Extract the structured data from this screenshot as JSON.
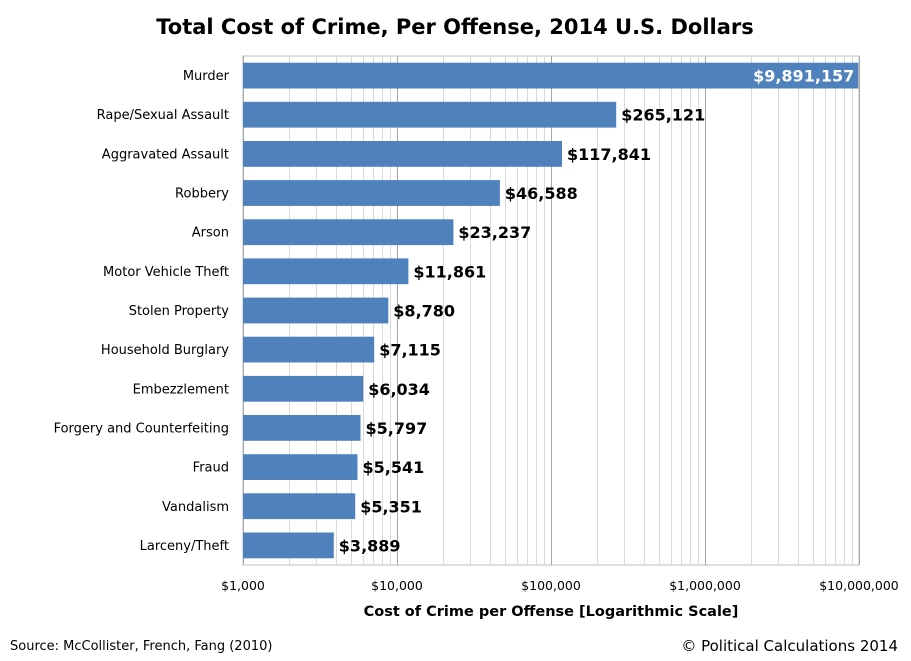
{
  "chart_data": {
    "type": "bar",
    "orientation": "horizontal",
    "title": "Total Cost of Crime, Per Offense, 2014 U.S. Dollars",
    "xlabel": "Cost of Crime per Offense [Logarithmic Scale]",
    "ylabel": "",
    "x_scale": "log",
    "xlim": [
      1000,
      10000000
    ],
    "x_ticks": [
      1000,
      10000,
      100000,
      1000000,
      10000000
    ],
    "x_tick_labels": [
      "$1,000",
      "$10,000",
      "$100,000",
      "$1,000,000",
      "$10,000,000"
    ],
    "grid": "vertical minor and major log gridlines",
    "legend": "none",
    "bar_color": "#4f81bd",
    "categories": [
      "Murder",
      "Rape/Sexual Assault",
      "Aggravated Assault",
      "Robbery",
      "Arson",
      "Motor Vehicle Theft",
      "Stolen Property",
      "Household Burglary",
      "Embezzlement",
      "Forgery and Counterfeiting",
      "Fraud",
      "Vandalism",
      "Larceny/Theft"
    ],
    "values": [
      9891157,
      265121,
      117841,
      46588,
      23237,
      11861,
      8780,
      7115,
      6034,
      5797,
      5541,
      5351,
      3889
    ],
    "data_labels": [
      "$9,891,157",
      "$265,121",
      "$117,841",
      "$46,588",
      "$23,237",
      "$11,861",
      "$8,780",
      "$7,115",
      "$6,034",
      "$5,797",
      "$5,541",
      "$5,351",
      "$3,889"
    ]
  },
  "footer": {
    "source": "Source: McCollister, French, Fang (2010)",
    "copyright": "© Political Calculations 2014"
  }
}
